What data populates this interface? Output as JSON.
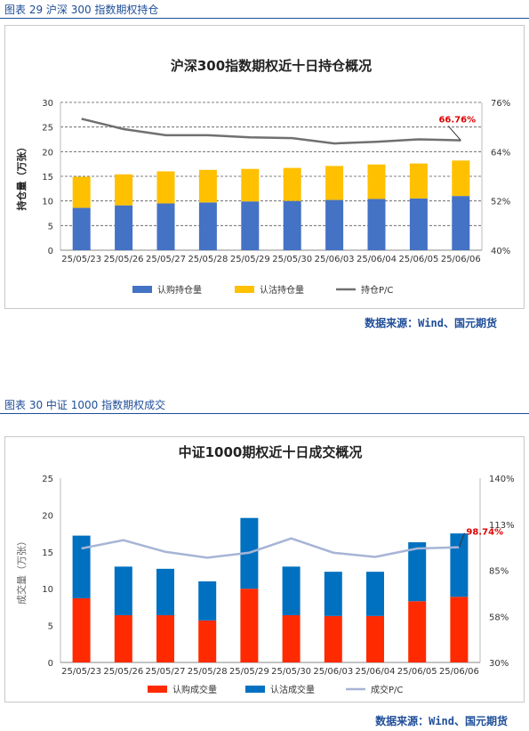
{
  "captions": {
    "fig29": "图表 29  沪深 300 指数期权持仓",
    "fig30": "图表 30  中证 1000 指数期权成交"
  },
  "sources": {
    "src1": "数据来源：Wind、国元期货",
    "src2": "数据来源：Wind、国元期货"
  },
  "chart_data": [
    {
      "type": "bar",
      "stacked": true,
      "title": "沪深300指数期权近十日持仓概况",
      "ylabel": "持仓量（万张）",
      "ylabel_bold": true,
      "categories": [
        "25/05/23",
        "25/05/26",
        "25/05/27",
        "25/05/28",
        "25/05/29",
        "25/05/30",
        "25/06/03",
        "25/06/04",
        "25/06/05",
        "25/06/06"
      ],
      "ylim": [
        0,
        30
      ],
      "yticks": [
        "0",
        "5",
        "10",
        "15",
        "20",
        "25",
        "30"
      ],
      "y2lim": [
        40,
        76
      ],
      "y2ticks": [
        "40%",
        "52%",
        "64%",
        "76%"
      ],
      "y2tick_values": [
        40,
        52,
        64,
        76
      ],
      "series": [
        {
          "name": "认购持仓量",
          "color": "#4472c4",
          "axis": "left",
          "values": [
            8.6,
            9.1,
            9.5,
            9.7,
            9.9,
            10.0,
            10.2,
            10.4,
            10.5,
            11.0
          ]
        },
        {
          "name": "认沽持仓量",
          "color": "#ffc000",
          "axis": "left",
          "values": [
            6.3,
            6.3,
            6.5,
            6.6,
            6.6,
            6.7,
            6.9,
            7.0,
            7.1,
            7.2
          ]
        },
        {
          "name": "持仓P/C",
          "color": "#707070",
          "axis": "right",
          "line": true,
          "values": [
            72.0,
            69.5,
            68.0,
            68.0,
            67.5,
            67.3,
            66.0,
            66.4,
            67.0,
            66.76
          ]
        }
      ],
      "annotation": {
        "text": "66.76%",
        "index": 9,
        "color": "#e00000"
      },
      "grid": true,
      "legend_position": "bottom"
    },
    {
      "type": "bar",
      "stacked": true,
      "title": "中证1000期权近十日成交概况",
      "ylabel": "成交量（万张）",
      "ylabel_bold": false,
      "categories": [
        "25/05/23",
        "25/05/26",
        "25/05/27",
        "25/05/28",
        "25/05/29",
        "25/05/30",
        "25/06/03",
        "25/06/04",
        "25/06/05",
        "25/06/06"
      ],
      "ylim": [
        0,
        25
      ],
      "yticks": [
        "0",
        "5",
        "10",
        "15",
        "20",
        "25"
      ],
      "y2lim": [
        30,
        140
      ],
      "y2ticks": [
        "30%",
        "58%",
        "85%",
        "113%",
        "140%"
      ],
      "y2tick_values": [
        30,
        57.5,
        85,
        112.5,
        140
      ],
      "series": [
        {
          "name": "认购成交量",
          "color": "#ff2a00",
          "axis": "left",
          "values": [
            8.7,
            6.4,
            6.4,
            5.7,
            10.0,
            6.4,
            6.3,
            6.3,
            8.3,
            8.9
          ]
        },
        {
          "name": "认沽成交量",
          "color": "#0070c0",
          "axis": "left",
          "values": [
            8.5,
            6.6,
            6.3,
            5.3,
            9.6,
            6.6,
            6.0,
            6.0,
            8.0,
            8.6
          ]
        },
        {
          "name": "成交P/C",
          "color": "#a6b4d6",
          "axis": "right",
          "line": true,
          "values": [
            98.0,
            103.0,
            96.0,
            92.5,
            95.5,
            104.0,
            95.5,
            93.0,
            98.0,
            98.74
          ]
        }
      ],
      "annotation": {
        "text": "98.74%",
        "index": 9,
        "color": "#e00000"
      },
      "grid": false,
      "legend_position": "bottom"
    }
  ]
}
